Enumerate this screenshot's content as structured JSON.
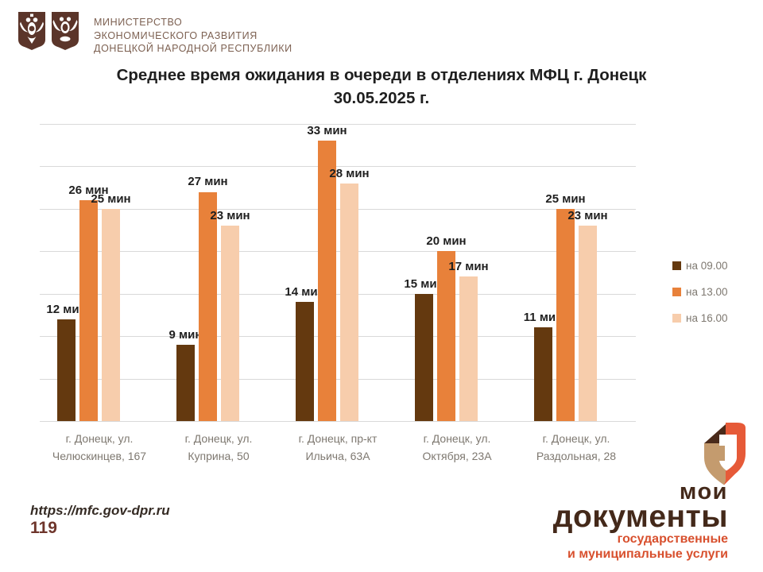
{
  "header": {
    "ministry_lines": [
      "МИНИСТЕРСТВО",
      "ЭКОНОМИЧЕСКОГО РАЗВИТИЯ",
      "ДОНЕЦКОЙ НАРОДНОЙ РЕСПУБЛИКИ"
    ]
  },
  "title": {
    "line1": "Среднее время ожидания в очереди в отделениях МФЦ г. Донецк",
    "line2": "30.05.2025 г."
  },
  "chart_data": {
    "type": "bar",
    "title": "Среднее время ожидания в очереди в отделениях МФЦ г. Донецк 30.05.2025 г.",
    "categories": [
      [
        "г. Донецк, ул.",
        "Челюскинцев, 167"
      ],
      [
        "г. Донецк, ул.",
        "Куприна, 50"
      ],
      [
        "г. Донецк, пр-кт",
        "Ильича, 63А"
      ],
      [
        "г. Донецк, ул.",
        "Октября, 23А"
      ],
      [
        "г. Донецк, ул.",
        "Раздольная, 28"
      ]
    ],
    "series": [
      {
        "name": "на 09.00",
        "color": "#64390f",
        "values": [
          12,
          9,
          14,
          15,
          11
        ]
      },
      {
        "name": "на 13.00",
        "color": "#e8813a",
        "values": [
          26,
          27,
          33,
          20,
          25
        ]
      },
      {
        "name": "на 16.00",
        "color": "#f7cdac",
        "values": [
          25,
          23,
          28,
          17,
          23
        ]
      }
    ],
    "label_suffix": " мин",
    "xlabel": "",
    "ylabel": "",
    "ylim": [
      0,
      35
    ],
    "gridline_step": 5,
    "grid": true,
    "legend_position": "right"
  },
  "footer": {
    "site": "https://mfc.gov-dpr.ru",
    "hotline": "119"
  },
  "logo": {
    "word1": "мои",
    "word2": "документы",
    "tagline1": "государственные",
    "tagline2": "и муниципальные услуги"
  },
  "colors": {
    "series_dark_brown": "#64390f",
    "series_orange": "#e8813a",
    "series_light_peach": "#f7cdac",
    "emblem_brown": "#5b352a",
    "brand_dark_brown": "#44291a",
    "brand_red": "#d8502e",
    "gridline": "#d9d9d9",
    "axis_text": "#7e7870"
  }
}
